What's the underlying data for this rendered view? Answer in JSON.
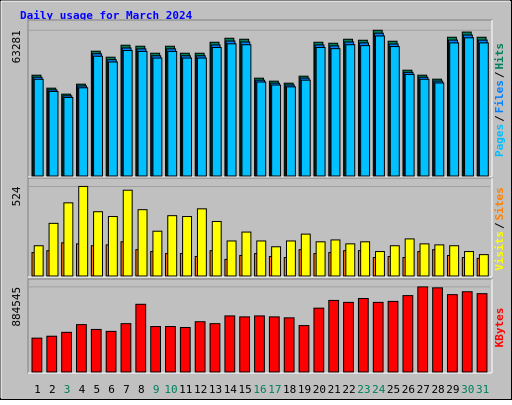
{
  "title": "Daily usage for March 2024",
  "legend_separator": "/",
  "chart_data": [
    {
      "type": "bar",
      "categories": [
        "1",
        "2",
        "3",
        "4",
        "5",
        "6",
        "7",
        "8",
        "9",
        "10",
        "11",
        "12",
        "13",
        "14",
        "15",
        "16",
        "17",
        "18",
        "19",
        "20",
        "21",
        "22",
        "23",
        "24",
        "25",
        "26",
        "27",
        "28",
        "29",
        "30",
        "31"
      ],
      "category_colors": [
        "#000000",
        "#000000",
        "#00805c",
        "#000000",
        "#000000",
        "#000000",
        "#000000",
        "#000000",
        "#00805c",
        "#00805c",
        "#000000",
        "#000000",
        "#000000",
        "#000000",
        "#000000",
        "#00805c",
        "#00805c",
        "#000000",
        "#000000",
        "#000000",
        "#000000",
        "#000000",
        "#00805c",
        "#00805c",
        "#000000",
        "#000000",
        "#000000",
        "#000000",
        "#000000",
        "#00805c",
        "#00805c"
      ],
      "ylim": [
        0,
        66000
      ],
      "yticks": [
        63281
      ],
      "series": [
        {
          "name": "Hits",
          "color": "#00805c",
          "values": [
            43775,
            38140,
            35540,
            39875,
            54180,
            51580,
            56780,
            56345,
            53310,
            56345,
            53310,
            53310,
            58080,
            59810,
            59380,
            42475,
            41175,
            40310,
            43340,
            58080,
            57645,
            59380,
            58945,
            63281,
            58510,
            45940,
            43775,
            42040,
            60245,
            62500,
            60245
          ]
        },
        {
          "name": "Files",
          "color": "#0080ff",
          "values": [
            42900,
            37400,
            34800,
            39100,
            53100,
            50500,
            55600,
            55200,
            52200,
            55200,
            52200,
            52200,
            56900,
            58600,
            58200,
            41600,
            40300,
            39500,
            42500,
            56900,
            56500,
            58200,
            57800,
            62000,
            57300,
            45000,
            42900,
            41200,
            59000,
            61200,
            59000
          ]
        },
        {
          "name": "Pages",
          "color": "#00c0ff",
          "values": [
            42000,
            36700,
            34100,
            38300,
            52000,
            49500,
            54500,
            54100,
            51200,
            54100,
            51200,
            51200,
            55800,
            57400,
            57000,
            40800,
            39500,
            38700,
            41600,
            55800,
            55300,
            57000,
            56600,
            60800,
            56200,
            44100,
            42000,
            40400,
            57800,
            60000,
            57800
          ]
        }
      ],
      "legend_position": "right"
    },
    {
      "type": "bar",
      "ylim": [
        0,
        550
      ],
      "yticks": [
        524
      ],
      "series": [
        {
          "name": "Sites",
          "color": "#ff8000",
          "values": [
            137,
            148,
            194,
            188,
            177,
            182,
            200,
            154,
            143,
            131,
            131,
            114,
            148,
            97,
            120,
            131,
            114,
            108,
            154,
            131,
            137,
            148,
            148,
            108,
            114,
            108,
            143,
            154,
            120,
            108,
            103
          ]
        },
        {
          "name": "Visits",
          "color": "#ffff00",
          "values": [
            177,
            308,
            428,
            524,
            376,
            348,
            502,
            388,
            262,
            353,
            348,
            393,
            319,
            205,
            257,
            205,
            171,
            205,
            245,
            200,
            211,
            188,
            200,
            143,
            177,
            217,
            188,
            182,
            177,
            143,
            125
          ]
        }
      ],
      "legend_position": "right"
    },
    {
      "type": "bar",
      "ylim": [
        0,
        925000
      ],
      "yticks": [
        884545
      ],
      "series": [
        {
          "name": "KBytes",
          "color": "#ff0000",
          "values": [
            351820,
            371924,
            412132,
            492548,
            442288,
            422184,
            502600,
            703640,
            472444,
            472444,
            462392,
            522704,
            502600,
            583016,
            572964,
            583016,
            572964,
            562912,
            482496,
            663432,
            743848,
            723744,
            763952,
            723744,
            733796,
            794108,
            884545,
            874524,
            804160,
            834316,
            814212
          ]
        }
      ],
      "legend_position": "right"
    }
  ]
}
